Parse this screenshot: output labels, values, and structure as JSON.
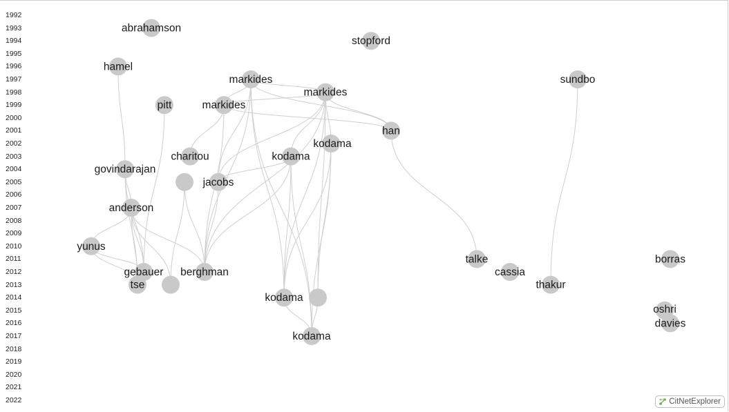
{
  "app": {
    "brand": "CitNetExplorer",
    "brand_icon": "citnet-logo-icon"
  },
  "years": [
    1992,
    1993,
    1994,
    1995,
    1996,
    1997,
    1998,
    1999,
    2000,
    2001,
    2002,
    2003,
    2004,
    2005,
    2006,
    2007,
    2008,
    2009,
    2010,
    2011,
    2012,
    2013,
    2014,
    2015,
    2016,
    2017,
    2018,
    2019,
    2020,
    2021,
    2022
  ],
  "node_color": "#c9c9c9",
  "edge_color": "#cfcfcf",
  "nodes": [
    {
      "id": "abrahamson",
      "label": "abrahamson",
      "year": 1993
    },
    {
      "id": "stopford",
      "label": "stopford",
      "year": 1994
    },
    {
      "id": "hamel",
      "label": "hamel",
      "year": 1996
    },
    {
      "id": "markides1997",
      "label": "markides",
      "year": 1997
    },
    {
      "id": "sundbo",
      "label": "sundbo",
      "year": 1997
    },
    {
      "id": "markides1998",
      "label": "markides",
      "year": 1998
    },
    {
      "id": "pitt",
      "label": "pitt",
      "year": 1999
    },
    {
      "id": "markides1999",
      "label": "markides",
      "year": 1999
    },
    {
      "id": "han",
      "label": "han",
      "year": 2001
    },
    {
      "id": "kodama2002",
      "label": "kodama",
      "year": 2002
    },
    {
      "id": "charitou",
      "label": "charitou",
      "year": 2003
    },
    {
      "id": "kodama2003",
      "label": "kodama",
      "year": 2003
    },
    {
      "id": "govindarajan",
      "label": "govindarajan",
      "year": 2004
    },
    {
      "id": "unlabeled2005",
      "label": "",
      "year": 2005
    },
    {
      "id": "jacobs",
      "label": "jacobs",
      "year": 2005
    },
    {
      "id": "anderson",
      "label": "anderson",
      "year": 2007
    },
    {
      "id": "yunus",
      "label": "yunus",
      "year": 2010
    },
    {
      "id": "talke",
      "label": "talke",
      "year": 2011
    },
    {
      "id": "borras",
      "label": "borras",
      "year": 2011
    },
    {
      "id": "cassia",
      "label": "cassia",
      "year": 2012
    },
    {
      "id": "gebauer",
      "label": "gebauer",
      "year": 2012
    },
    {
      "id": "berghman",
      "label": "berghman",
      "year": 2012
    },
    {
      "id": "tse",
      "label": "tse",
      "year": 2013
    },
    {
      "id": "unlabeled2013",
      "label": "",
      "year": 2013
    },
    {
      "id": "thakur",
      "label": "thakur",
      "year": 2013
    },
    {
      "id": "kodama2014",
      "label": "kodama",
      "year": 2014
    },
    {
      "id": "unlabeled2014",
      "label": "",
      "year": 2014
    },
    {
      "id": "oshri",
      "label": "oshri",
      "year": 2015
    },
    {
      "id": "davies",
      "label": "davies",
      "year": 2016
    },
    {
      "id": "kodama2017",
      "label": "kodama",
      "year": 2017
    }
  ],
  "edges": [
    [
      "hamel",
      "govindarajan"
    ],
    [
      "govindarajan",
      "anderson"
    ],
    [
      "govindarajan",
      "gebauer"
    ],
    [
      "govindarajan",
      "tse"
    ],
    [
      "anderson",
      "yunus"
    ],
    [
      "anderson",
      "gebauer"
    ],
    [
      "anderson",
      "tse"
    ],
    [
      "anderson",
      "unlabeled2013"
    ],
    [
      "anderson",
      "berghman"
    ],
    [
      "yunus",
      "tse"
    ],
    [
      "yunus",
      "gebauer"
    ],
    [
      "pitt",
      "gebauer"
    ],
    [
      "markides1999",
      "charitou"
    ],
    [
      "markides1999",
      "berghman"
    ],
    [
      "markides1997",
      "markides1998"
    ],
    [
      "markides1997",
      "markides1999"
    ],
    [
      "markides1997",
      "han"
    ],
    [
      "markides1997",
      "kodama2014"
    ],
    [
      "markides1997",
      "kodama2017"
    ],
    [
      "markides1997",
      "berghman"
    ],
    [
      "markides1997",
      "jacobs"
    ],
    [
      "markides1998",
      "han"
    ],
    [
      "markides1998",
      "kodama2002"
    ],
    [
      "markides1998",
      "kodama2003"
    ],
    [
      "markides1998",
      "kodama2014"
    ],
    [
      "markides1998",
      "unlabeled2014"
    ],
    [
      "markides1998",
      "berghman"
    ],
    [
      "markides1998",
      "jacobs"
    ],
    [
      "markides1998",
      "markides1999"
    ],
    [
      "markides1999",
      "han"
    ],
    [
      "jacobs",
      "berghman"
    ],
    [
      "jacobs",
      "kodama2003"
    ],
    [
      "unlabeled2005",
      "unlabeled2013"
    ],
    [
      "unlabeled2005",
      "berghman"
    ],
    [
      "kodama2003",
      "kodama2014"
    ],
    [
      "kodama2003",
      "kodama2017"
    ],
    [
      "kodama2003",
      "berghman"
    ],
    [
      "kodama2002",
      "kodama2014"
    ],
    [
      "kodama2002",
      "kodama2017"
    ],
    [
      "kodama2002",
      "unlabeled2014"
    ],
    [
      "unlabeled2014",
      "kodama2017"
    ],
    [
      "kodama2014",
      "kodama2017"
    ],
    [
      "han",
      "talke"
    ],
    [
      "sundbo",
      "thakur"
    ]
  ]
}
